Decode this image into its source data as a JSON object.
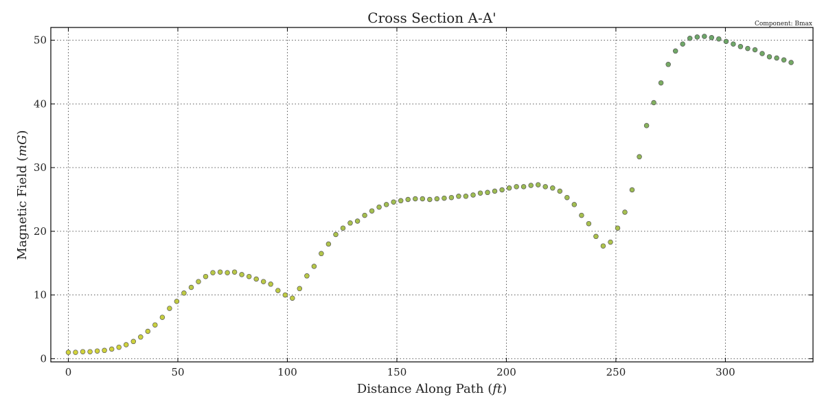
{
  "chart_data": {
    "type": "scatter",
    "title": "Cross Section A-A'",
    "annotation": "Component: Bmax",
    "xlabel": "Distance Along Path (",
    "xlabel_unit": "ft",
    "xlabel_close": ")",
    "ylabel": "Magnetic Field (",
    "ylabel_unit": "mG",
    "ylabel_close": ")",
    "xlim": [
      -8,
      340
    ],
    "ylim": [
      -0.5,
      52
    ],
    "xticks": [
      0,
      50,
      100,
      150,
      200,
      250,
      300
    ],
    "yticks": [
      0,
      10,
      20,
      30,
      40,
      50
    ],
    "grid": true,
    "marker_color_low": "#d4d43a",
    "marker_color_high": "#6aa56a",
    "marker_edge": "#555555",
    "series": [
      {
        "x": [
          0,
          3.3,
          6.6,
          9.9,
          13.2,
          16.5,
          19.8,
          23.1,
          26.4,
          29.7,
          33,
          36.3,
          39.6,
          42.9,
          46.2,
          49.5,
          52.8,
          56.1,
          59.4,
          62.7,
          66,
          69.3,
          72.6,
          75.9,
          79.2,
          82.5,
          85.8,
          89.1,
          92.4,
          95.7,
          99,
          102.3,
          105.6,
          108.9,
          112.2,
          115.5,
          118.8,
          122.1,
          125.4,
          128.7,
          132,
          135.3,
          138.6,
          141.9,
          145.2,
          148.5,
          151.8,
          155.1,
          158.4,
          161.7,
          165,
          168.3,
          171.6,
          174.9,
          178.2,
          181.5,
          184.8,
          188.1,
          191.4,
          194.7,
          198,
          201.3,
          204.6,
          207.9,
          211.2,
          214.5,
          217.8,
          221.1,
          224.4,
          227.7,
          231,
          234.3,
          237.6,
          240.9,
          244.2,
          247.5,
          250.8,
          254.1,
          257.4,
          260.7,
          264,
          267.3,
          270.6,
          273.9,
          277.2,
          280.5,
          283.8,
          287.1,
          290.4,
          293.7,
          297,
          300.3,
          303.6,
          306.9,
          310.2,
          313.5,
          316.8,
          320.1,
          323.4,
          326.7,
          330
        ],
        "y": [
          1.0,
          1.0,
          1.1,
          1.1,
          1.2,
          1.3,
          1.5,
          1.8,
          2.2,
          2.7,
          3.4,
          4.3,
          5.3,
          6.5,
          7.9,
          9.0,
          10.3,
          11.2,
          12.1,
          12.9,
          13.5,
          13.6,
          13.5,
          13.6,
          13.2,
          12.9,
          12.5,
          12.1,
          11.7,
          10.7,
          10.0,
          9.5,
          11.0,
          13.0,
          14.5,
          16.5,
          18.0,
          19.5,
          20.5,
          21.3,
          21.6,
          22.5,
          23.2,
          23.8,
          24.2,
          24.6,
          24.8,
          25.0,
          25.1,
          25.1,
          25.0,
          25.1,
          25.2,
          25.3,
          25.5,
          25.5,
          25.7,
          26.0,
          26.1,
          26.3,
          26.5,
          26.8,
          27.0,
          27.0,
          27.2,
          27.3,
          27.0,
          26.8,
          26.3,
          25.3,
          24.2,
          22.5,
          21.2,
          19.2,
          17.7,
          18.3,
          20.5,
          23.0,
          26.5,
          31.7,
          36.6,
          40.2,
          43.3,
          46.2,
          48.3,
          49.4,
          50.3,
          50.5,
          50.6,
          50.4,
          50.2,
          49.8,
          49.4,
          49.0,
          48.7,
          48.5,
          47.9,
          47.4,
          47.2,
          46.9,
          46.5
        ]
      }
    ]
  }
}
